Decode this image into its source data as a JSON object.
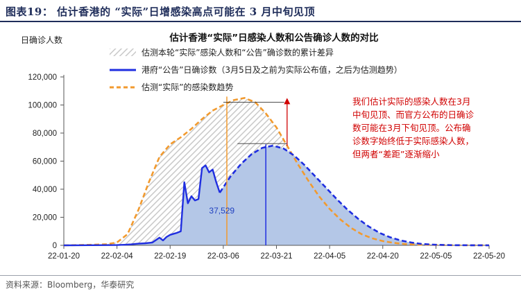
{
  "figure": {
    "title": "图表19：  估计香港的 “实际”日增感染高点可能在 3 月中旬见顶",
    "source": "资料来源：Bloomberg，华泰研究"
  },
  "chart_data": {
    "type": "line",
    "title": "估计香港“实际”日感染人数和公告确诊人数的对比",
    "ylabel": "日确诊人数",
    "ylim": [
      0,
      120000
    ],
    "yticks": [
      0,
      20000,
      40000,
      60000,
      80000,
      100000,
      120000
    ],
    "ytick_labels": [
      "0",
      "20,000",
      "40,000",
      "60,000",
      "80,000",
      "100,000",
      "120,000"
    ],
    "x_dates": [
      "22-01-20",
      "22-02-04",
      "22-02-19",
      "22-03-06",
      "22-03-21",
      "22-04-05",
      "22-04-20",
      "22-05-05",
      "22-05-20"
    ],
    "xlim": [
      "2022-01-20",
      "2022-05-20"
    ],
    "legend": [
      "估测本轮“实际”感染人数和“公告”确诊数的累计差异",
      "港府“公告”日确诊数（3月5日及之前为实际公布值，之后为估测趋势）",
      "估测“实际”的感染数趋势"
    ],
    "colors": {
      "announced": "#1f2ee0",
      "actual": "#f29a2e",
      "area_fill": "#b4c7e7",
      "hatch": "#cfcfcf",
      "annotation": "#d00000"
    },
    "series": [
      {
        "name": "港府“公告”日确诊数（3月5日及之前为实际公布值，之后为估测趋势）",
        "role": "announced",
        "points": [
          [
            "2022-01-20",
            0
          ],
          [
            "2022-01-24",
            50
          ],
          [
            "2022-01-28",
            100
          ],
          [
            "2022-02-01",
            150
          ],
          [
            "2022-02-04",
            200
          ],
          [
            "2022-02-06",
            400
          ],
          [
            "2022-02-08",
            700
          ],
          [
            "2022-02-10",
            1200
          ],
          [
            "2022-02-12",
            1500
          ],
          [
            "2022-02-14",
            2000
          ],
          [
            "2022-02-16",
            5500
          ],
          [
            "2022-02-17",
            3500
          ],
          [
            "2022-02-18",
            6000
          ],
          [
            "2022-02-19",
            7500
          ],
          [
            "2022-02-21",
            9000
          ],
          [
            "2022-02-22",
            10000
          ],
          [
            "2022-02-23",
            45000
          ],
          [
            "2022-02-24",
            30000
          ],
          [
            "2022-02-25",
            35000
          ],
          [
            "2022-02-26",
            32000
          ],
          [
            "2022-02-27",
            33000
          ],
          [
            "2022-02-28",
            55000
          ],
          [
            "2022-03-01",
            57000
          ],
          [
            "2022-03-02",
            52000
          ],
          [
            "2022-03-03",
            54000
          ],
          [
            "2022-03-04",
            45000
          ],
          [
            "2022-03-05",
            37529
          ]
        ]
      },
      {
        "name": "港府“公告”日确诊数（3月5日及之前为实际公布值，之后为估测趋势）",
        "role": "announced-estimated",
        "points": [
          [
            "2022-03-05",
            37529
          ],
          [
            "2022-03-08",
            49000
          ],
          [
            "2022-03-11",
            58000
          ],
          [
            "2022-03-14",
            65000
          ],
          [
            "2022-03-17",
            69500
          ],
          [
            "2022-03-20",
            71000
          ],
          [
            "2022-03-23",
            69000
          ],
          [
            "2022-03-26",
            64000
          ],
          [
            "2022-03-29",
            57000
          ],
          [
            "2022-04-01",
            49000
          ],
          [
            "2022-04-04",
            41000
          ],
          [
            "2022-04-07",
            33000
          ],
          [
            "2022-04-10",
            25500
          ],
          [
            "2022-04-13",
            19000
          ],
          [
            "2022-04-16",
            13500
          ],
          [
            "2022-04-19",
            9000
          ],
          [
            "2022-04-22",
            5800
          ],
          [
            "2022-04-25",
            3500
          ],
          [
            "2022-04-28",
            2000
          ],
          [
            "2022-05-01",
            1000
          ],
          [
            "2022-05-05",
            400
          ],
          [
            "2022-05-10",
            100
          ],
          [
            "2022-05-20",
            0
          ]
        ]
      },
      {
        "name": "估测“实际”的感染数趋势",
        "role": "actual",
        "points": [
          [
            "2022-01-20",
            0
          ],
          [
            "2022-01-24",
            200
          ],
          [
            "2022-01-28",
            400
          ],
          [
            "2022-02-01",
            800
          ],
          [
            "2022-02-04",
            2000
          ],
          [
            "2022-02-07",
            8000
          ],
          [
            "2022-02-10",
            25000
          ],
          [
            "2022-02-13",
            45000
          ],
          [
            "2022-02-16",
            63000
          ],
          [
            "2022-02-19",
            72000
          ],
          [
            "2022-02-22",
            77000
          ],
          [
            "2022-02-25",
            83000
          ],
          [
            "2022-02-28",
            90000
          ],
          [
            "2022-03-03",
            96000
          ],
          [
            "2022-03-06",
            100000
          ],
          [
            "2022-03-09",
            103500
          ],
          [
            "2022-03-12",
            105000
          ],
          [
            "2022-03-15",
            102000
          ],
          [
            "2022-03-18",
            94000
          ],
          [
            "2022-03-21",
            84000
          ],
          [
            "2022-03-24",
            71000
          ],
          [
            "2022-03-27",
            58000
          ],
          [
            "2022-03-30",
            46000
          ],
          [
            "2022-04-02",
            35000
          ],
          [
            "2022-04-05",
            26000
          ],
          [
            "2022-04-08",
            18500
          ],
          [
            "2022-04-11",
            12500
          ],
          [
            "2022-04-14",
            8000
          ],
          [
            "2022-04-17",
            5000
          ],
          [
            "2022-04-20",
            3000
          ],
          [
            "2022-04-23",
            1800
          ],
          [
            "2022-04-26",
            1000
          ],
          [
            "2022-05-01",
            400
          ],
          [
            "2022-05-10",
            100
          ],
          [
            "2022-05-20",
            0
          ]
        ]
      }
    ],
    "annotations": {
      "value_label": "37,529",
      "note": [
        "我们估计实际的感染人数在3月",
        "中旬见顶、而官方公布的日确诊",
        "数可能在3月下旬见顶。公布确",
        "诊数字始终低于实际感染人数，",
        "但两者“差距”逐渐缩小"
      ],
      "peak_actual_date": "2022-03-12",
      "peak_announced_date": "2022-03-20",
      "gap_date": "2022-03-24"
    }
  }
}
